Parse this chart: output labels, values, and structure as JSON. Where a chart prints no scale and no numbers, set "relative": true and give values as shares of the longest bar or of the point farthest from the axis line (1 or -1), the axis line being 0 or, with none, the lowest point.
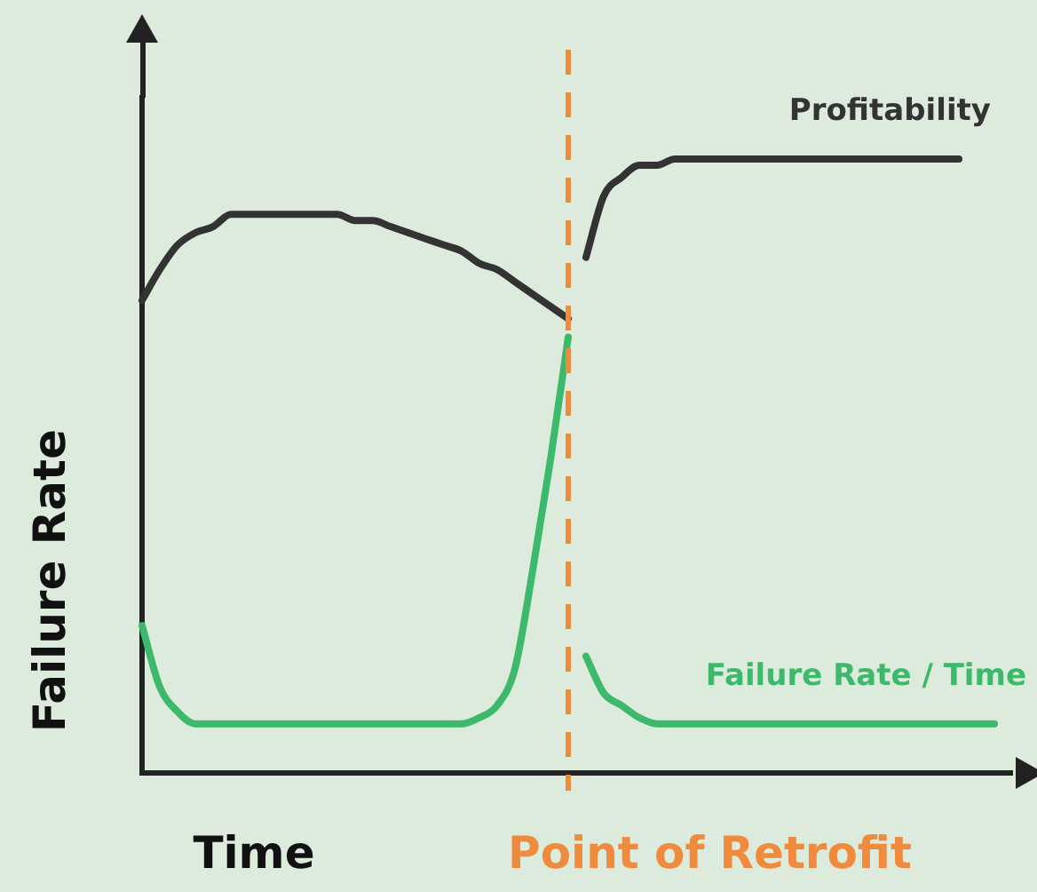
{
  "chart_data": {
    "type": "line",
    "relative": true,
    "xlabel": "Time",
    "ylabel": "Failure Rate",
    "legend": false,
    "marker": "none",
    "categories": [
      null,
      null,
      null,
      null,
      null,
      null,
      null,
      null,
      null,
      null,
      null,
      null,
      null,
      null,
      null,
      null,
      null,
      null,
      null,
      null,
      null,
      null,
      null,
      null,
      null,
      null,
      null,
      null,
      null,
      null,
      null,
      null,
      null,
      null,
      null,
      null,
      null,
      null,
      null,
      null,
      null,
      null,
      null,
      null,
      null,
      null,
      null,
      null,
      null,
      null
    ],
    "series": [
      {
        "color": "#333333",
        "values": [
          0.77,
          0.82,
          0.86,
          0.88,
          0.89,
          0.91,
          0.91,
          0.91,
          0.91,
          0.91,
          0.91,
          0.91,
          0.9,
          0.9,
          0.89,
          0.88,
          0.87,
          0.86,
          0.85,
          0.83,
          0.82,
          0.8,
          0.78,
          0.76,
          0.74,
          null,
          null,
          null,
          null,
          null,
          null,
          null,
          null,
          null,
          null,
          null,
          null,
          null,
          null,
          null,
          null,
          null,
          null,
          null,
          null,
          null,
          null,
          null,
          null,
          null
        ]
      },
      {
        "name": "Profitability",
        "color": "#333333",
        "values": [
          null,
          null,
          null,
          null,
          null,
          null,
          null,
          null,
          null,
          null,
          null,
          null,
          null,
          null,
          null,
          null,
          null,
          null,
          null,
          null,
          null,
          null,
          null,
          null,
          null,
          0.84,
          0.94,
          0.97,
          0.99,
          0.99,
          1,
          1,
          1,
          1,
          1,
          1,
          1,
          1,
          1,
          1,
          1,
          1,
          1,
          1,
          1,
          1,
          1,
          null,
          null,
          null
        ]
      },
      {
        "color": "#3cb96a",
        "values": [
          0.24,
          0.14,
          0.1,
          0.08,
          0.08,
          0.08,
          0.08,
          0.08,
          0.08,
          0.08,
          0.08,
          0.08,
          0.08,
          0.08,
          0.08,
          0.08,
          0.08,
          0.08,
          0.08,
          0.09,
          0.11,
          0.17,
          0.33,
          0.51,
          0.71,
          null,
          null,
          null,
          null,
          null,
          null,
          null,
          null,
          null,
          null,
          null,
          null,
          null,
          null,
          null,
          null,
          null,
          null,
          null,
          null,
          null,
          null,
          null,
          null,
          null
        ]
      },
      {
        "name": "Failure Rate / Time",
        "color": "#3cb96a",
        "values": [
          null,
          null,
          null,
          null,
          null,
          null,
          null,
          null,
          null,
          null,
          null,
          null,
          null,
          null,
          null,
          null,
          null,
          null,
          null,
          null,
          null,
          null,
          null,
          null,
          null,
          0.19,
          0.13,
          0.11,
          0.09,
          0.08,
          0.08,
          0.08,
          0.08,
          0.08,
          0.08,
          0.08,
          0.08,
          0.08,
          0.08,
          0.08,
          0.08,
          0.08,
          0.08,
          0.08,
          0.08,
          0.08,
          0.08,
          0.08,
          0.08,
          null
        ]
      }
    ],
    "annotations": [
      "Point of Retrofit"
    ]
  }
}
